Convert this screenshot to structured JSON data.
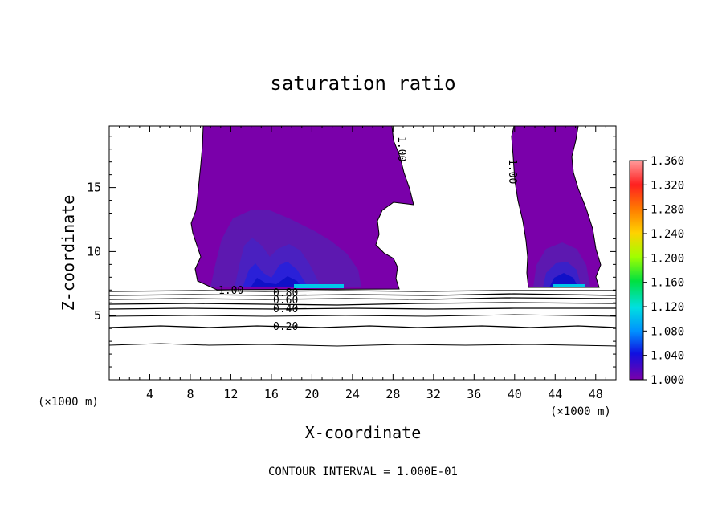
{
  "chart_data": {
    "type": "contour",
    "title": "saturation ratio",
    "xlabel": "X-coordinate",
    "ylabel": "Z-coordinate",
    "x_unit": "(×1000 m)",
    "y_unit": "(×1000 m)",
    "xlim": [
      0,
      50
    ],
    "ylim": [
      0,
      19.8
    ],
    "x_ticks": [
      4,
      8,
      12,
      16,
      20,
      24,
      28,
      32,
      36,
      40,
      44,
      48
    ],
    "y_ticks": [
      5,
      10,
      15
    ],
    "colorbar": {
      "ticks": [
        "1.360",
        "1.320",
        "1.280",
        "1.240",
        "1.200",
        "1.160",
        "1.120",
        "1.080",
        "1.040",
        "1.000"
      ],
      "colors": [
        "#ff8a8a",
        "#ff2020",
        "#ff7a00",
        "#ffd200",
        "#a0ff00",
        "#00e040",
        "#00e0e0",
        "#0090ff",
        "#1010e0",
        "#7a00aa"
      ],
      "min": 1.0,
      "max": 1.36
    },
    "contour_labels": [
      {
        "text": "1.00",
        "x": 12.3,
        "z": 7.0
      },
      {
        "text": "0.80",
        "x": 17.8,
        "z": 6.6
      },
      {
        "text": "0.60",
        "x": 17.8,
        "z": 6.0
      },
      {
        "text": "0.40",
        "x": 17.8,
        "z": 5.5
      },
      {
        "text": "0.20",
        "x": 17.8,
        "z": 4.0
      },
      {
        "text": "1.00",
        "x": 28.3,
        "z": 18.2
      },
      {
        "text": "1.00",
        "x": 39.3,
        "z": 16.6
      }
    ],
    "contour_interval_text": "CONTOUR INTERVAL = 1.000E-01"
  }
}
